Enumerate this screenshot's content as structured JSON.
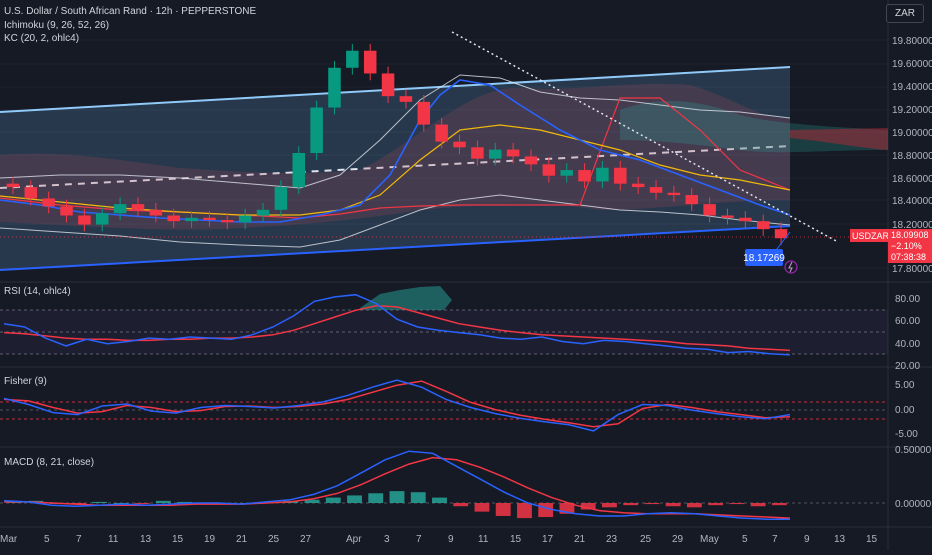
{
  "header": {
    "symbol_title": "U.S. Dollar / South African Rand · 12h · PEPPERSTONE",
    "currency_button": "ZAR"
  },
  "indicators": {
    "ichimoku": "Ichimoku (9, 26, 52, 26)",
    "kc": "KC (20, 2, ohlc4)",
    "rsi": "RSI (14, ohlc4)",
    "fisher": "Fisher (9)",
    "macd": "MACD (8, 21, close)"
  },
  "price_axis": [
    "19.80000",
    "19.60000",
    "19.40000",
    "19.20000",
    "19.00000",
    "18.80000",
    "18.60000",
    "18.40000",
    "18.20000",
    "17.80000"
  ],
  "rsi_axis": [
    "80.00",
    "60.00",
    "40.00",
    "20.00"
  ],
  "fisher_axis": [
    "5.00",
    "0.00",
    "-5.00"
  ],
  "macd_axis": [
    "0.50000",
    "0.00000"
  ],
  "time_axis": [
    "Mar",
    "5",
    "7",
    "11",
    "13",
    "15",
    "19",
    "21",
    "25",
    "27",
    "Apr",
    "3",
    "7",
    "9",
    "11",
    "15",
    "17",
    "21",
    "23",
    "25",
    "29",
    "May",
    "5",
    "7",
    "9",
    "13",
    "15"
  ],
  "price_tag": {
    "symbol": "USDZAR",
    "price": "18.09908",
    "change": "−2.10%",
    "countdown": "07:38:38",
    "color": "#f23645"
  },
  "cursor_price": "18.17269",
  "colors": {
    "background": "#161a25",
    "up": "#089981",
    "down": "#f23645",
    "blue_line": "#2962ff",
    "rsi": "#2962ff",
    "signal": "#f23645",
    "channel": "#90caf9"
  },
  "chart_data": [
    {
      "type": "candlestick",
      "title": "U.S. Dollar / South African Rand · 12h · PEPPERSTONE",
      "price_range": [
        17.75,
        19.95
      ],
      "approx_closes": [
        18.55,
        18.45,
        18.38,
        18.3,
        18.22,
        18.32,
        18.4,
        18.35,
        18.3,
        18.25,
        18.28,
        18.26,
        18.24,
        18.3,
        18.35,
        18.55,
        18.85,
        19.25,
        19.6,
        19.75,
        19.55,
        19.35,
        19.3,
        19.1,
        18.95,
        18.9,
        18.8,
        18.88,
        18.82,
        18.75,
        18.65,
        18.7,
        18.6,
        18.72,
        18.58,
        18.55,
        18.5,
        18.48,
        18.4,
        18.3,
        18.28,
        18.25,
        18.18,
        18.1
      ],
      "current_price": 18.09908
    },
    {
      "type": "line",
      "title": "RSI (14, ohlc4)",
      "ylim": [
        20,
        90
      ],
      "series": [
        {
          "values": [
            58,
            55,
            45,
            38,
            44,
            40,
            42,
            45,
            44,
            46,
            45,
            44,
            48,
            55,
            65,
            78,
            82,
            84,
            76,
            62,
            55,
            52,
            50,
            48,
            45,
            44,
            46,
            42,
            40,
            43,
            42,
            40,
            38,
            36,
            35,
            32,
            33,
            31,
            30
          ]
        },
        {
          "values": [
            50,
            49,
            47,
            45,
            44,
            44,
            43,
            43,
            44,
            44,
            45,
            45,
            46,
            48,
            52,
            58,
            64,
            70,
            74,
            73,
            68,
            63,
            58,
            55,
            52,
            50,
            48,
            47,
            46,
            45,
            44,
            43,
            42,
            40,
            39,
            38,
            36,
            35,
            34
          ]
        }
      ]
    },
    {
      "type": "line",
      "title": "Fisher (9)",
      "ylim": [
        -6,
        7
      ],
      "series": [
        {
          "values": [
            2.0,
            0.8,
            -0.8,
            -1.2,
            0.5,
            0.9,
            -0.5,
            -0.9,
            0.2,
            0.6,
            0.4,
            0.1,
            0.6,
            1.3,
            2.6,
            4.2,
            5.6,
            4.2,
            1.8,
            0.2,
            -1.0,
            -1.9,
            -2.6,
            -3.2,
            -4.4,
            -1.2,
            0.8,
            0.6,
            -0.3,
            -1.0,
            -1.6,
            -2.0,
            -1.2
          ]
        },
        {
          "values": [
            1.8,
            1.5,
            0.2,
            -0.9,
            -0.6,
            0.6,
            0.2,
            -0.6,
            -0.4,
            0.4,
            0.5,
            0.2,
            0.4,
            0.9,
            1.8,
            3.2,
            4.6,
            5.4,
            3.4,
            1.2,
            -0.2,
            -1.3,
            -2.1,
            -2.8,
            -3.6,
            -3.0,
            0.0,
            0.8,
            0.2,
            -0.6,
            -1.2,
            -1.8,
            -1.6
          ]
        }
      ]
    },
    {
      "type": "bar",
      "title": "MACD (8, 21, close)",
      "histogram": [
        0.01,
        0.02,
        0.0,
        -0.01,
        0.01,
        0.0,
        -0.01,
        0.02,
        0.01,
        0.0,
        -0.01,
        0.0,
        0.01,
        0.02,
        0.03,
        0.05,
        0.07,
        0.09,
        0.11,
        0.1,
        0.05,
        -0.03,
        -0.08,
        -0.12,
        -0.14,
        -0.13,
        -0.1,
        -0.06,
        -0.04,
        -0.02,
        -0.01,
        -0.03,
        -0.04,
        -0.02,
        -0.01,
        -0.03,
        -0.02
      ],
      "series": [
        {
          "values": [
            0.02,
            0.01,
            -0.02,
            -0.03,
            -0.02,
            -0.01,
            -0.02,
            -0.01,
            0.0,
            0.0,
            -0.01,
            0.01,
            0.03,
            0.08,
            0.16,
            0.28,
            0.4,
            0.48,
            0.46,
            0.34,
            0.22,
            0.1,
            0.0,
            -0.06,
            -0.1,
            -0.12,
            -0.12,
            -0.1,
            -0.09,
            -0.1,
            -0.12,
            -0.14,
            -0.15,
            -0.15
          ]
        },
        {
          "values": [
            0.01,
            0.01,
            0.0,
            -0.01,
            -0.02,
            -0.02,
            -0.02,
            -0.02,
            -0.01,
            -0.01,
            -0.01,
            0.0,
            0.01,
            0.04,
            0.09,
            0.17,
            0.27,
            0.36,
            0.42,
            0.4,
            0.33,
            0.24,
            0.14,
            0.05,
            -0.02,
            -0.07,
            -0.09,
            -0.1,
            -0.1,
            -0.1,
            -0.11,
            -0.12,
            -0.13,
            -0.14
          ]
        }
      ]
    }
  ]
}
